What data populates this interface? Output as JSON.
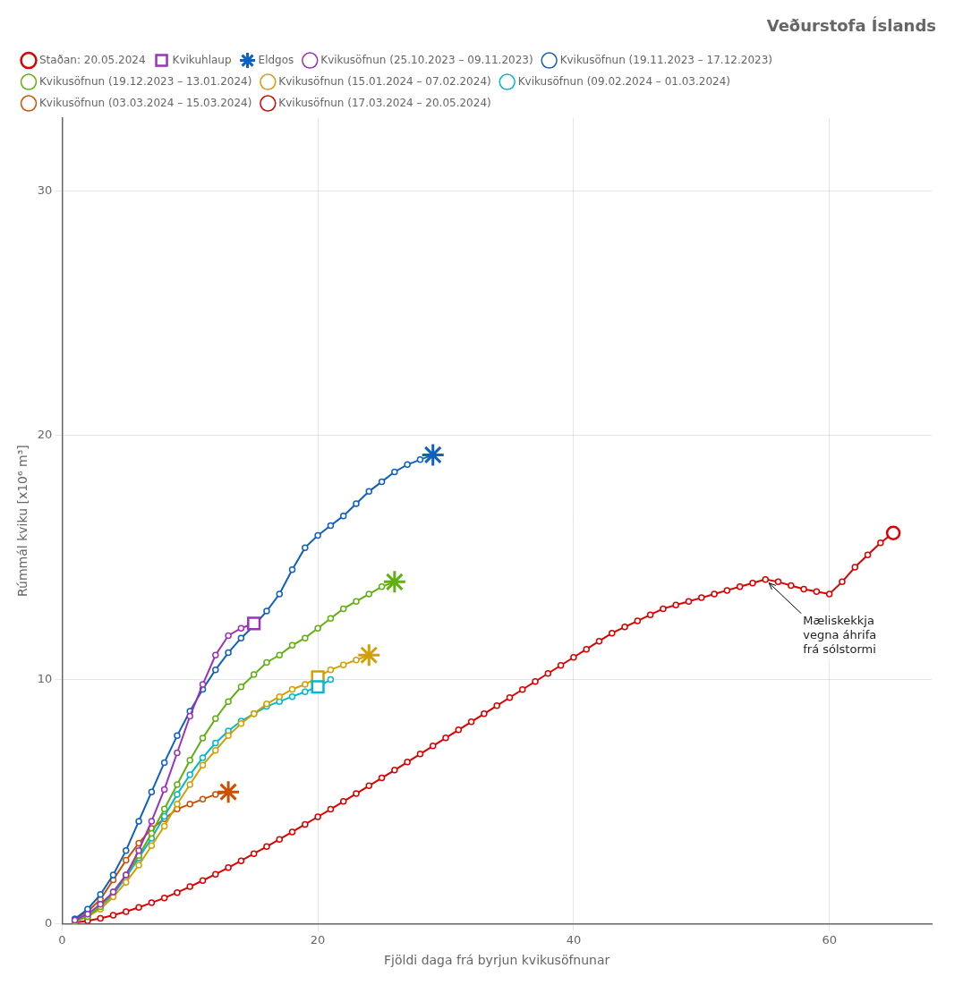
{
  "chart_data": {
    "type": "line",
    "title": "Veðurstofa Íslands",
    "xlabel": "Fjöldi daga frá byrjun kvikusöfnunar",
    "ylabel": "Rúmmál kviku [x10⁶ m³]",
    "xlim": [
      0,
      68
    ],
    "ylim": [
      0,
      33
    ],
    "xticks": [
      0,
      20,
      40,
      60
    ],
    "yticks": [
      0,
      10,
      20,
      30
    ],
    "grid": true,
    "legend": "top",
    "series": [
      {
        "name": "Kvikusöfnun (25.10.2023 – 09.11.2023)",
        "type": "line",
        "marker": "circle",
        "color": "#9933bb",
        "x": [
          1,
          2,
          3,
          4,
          5,
          6,
          7,
          8,
          9,
          10,
          11,
          12,
          13,
          14,
          15
        ],
        "values": [
          0.15,
          0.4,
          0.8,
          1.3,
          2.0,
          3.0,
          4.2,
          5.5,
          7.0,
          8.5,
          9.8,
          11.0,
          11.8,
          12.1,
          12.3
        ]
      },
      {
        "name": "Kvikusöfnun (19.11.2023 – 17.12.2023)",
        "type": "line",
        "marker": "circle",
        "color": "#1060c0",
        "x": [
          1,
          2,
          3,
          4,
          5,
          6,
          7,
          8,
          9,
          10,
          11,
          12,
          13,
          14,
          15,
          16,
          17,
          18,
          19,
          20,
          21,
          22,
          23,
          24,
          25,
          26,
          27,
          28,
          29
        ],
        "values": [
          0.2,
          0.6,
          1.2,
          2.0,
          3.0,
          4.2,
          5.4,
          6.6,
          7.7,
          8.7,
          9.6,
          10.4,
          11.1,
          11.7,
          12.2,
          12.8,
          13.5,
          14.5,
          15.4,
          15.9,
          16.3,
          16.7,
          17.2,
          17.7,
          18.1,
          18.5,
          18.8,
          19.0,
          19.2
        ]
      },
      {
        "name": "Kvikusöfnun (19.12.2023 – 13.01.2024)",
        "type": "line",
        "marker": "circle",
        "color": "#60b010",
        "x": [
          1,
          2,
          3,
          4,
          5,
          6,
          7,
          8,
          9,
          10,
          11,
          12,
          13,
          14,
          15,
          16,
          17,
          18,
          19,
          20,
          21,
          22,
          23,
          24,
          25,
          26
        ],
        "values": [
          0.1,
          0.3,
          0.7,
          1.3,
          2.0,
          2.8,
          3.7,
          4.7,
          5.7,
          6.7,
          7.6,
          8.4,
          9.1,
          9.7,
          10.2,
          10.7,
          11.0,
          11.4,
          11.7,
          12.1,
          12.5,
          12.9,
          13.2,
          13.5,
          13.8,
          14.0
        ]
      },
      {
        "name": "Kvikusöfnun (15.01.2024 – 07.02.2024)",
        "type": "line",
        "marker": "circle",
        "color": "#d4a000",
        "x": [
          1,
          2,
          3,
          4,
          5,
          6,
          7,
          8,
          9,
          10,
          11,
          12,
          13,
          14,
          15,
          16,
          17,
          18,
          19,
          20,
          21,
          22,
          23,
          24
        ],
        "values": [
          0.1,
          0.3,
          0.6,
          1.1,
          1.7,
          2.4,
          3.2,
          4.0,
          4.9,
          5.7,
          6.5,
          7.1,
          7.7,
          8.2,
          8.6,
          9.0,
          9.3,
          9.6,
          9.8,
          10.1,
          10.4,
          10.6,
          10.8,
          11.0
        ]
      },
      {
        "name": "Kvikusöfnun (09.02.2024 – 01.03.2024)",
        "type": "line",
        "marker": "circle",
        "color": "#00b8d0",
        "x": [
          1,
          2,
          3,
          4,
          5,
          6,
          7,
          8,
          9,
          10,
          11,
          12,
          13,
          14,
          15,
          16,
          17,
          18,
          19,
          20,
          21
        ],
        "values": [
          0.1,
          0.3,
          0.7,
          1.2,
          1.9,
          2.7,
          3.5,
          4.4,
          5.3,
          6.1,
          6.8,
          7.4,
          7.9,
          8.3,
          8.6,
          8.9,
          9.1,
          9.3,
          9.5,
          9.7,
          10.0
        ]
      },
      {
        "name": "Kvikusöfnun (03.03.2024 – 15.03.2024)",
        "type": "line",
        "marker": "circle",
        "color": "#cc5000",
        "x": [
          1,
          2,
          3,
          4,
          5,
          6,
          7,
          8,
          9,
          10,
          11,
          12,
          13
        ],
        "values": [
          0.2,
          0.5,
          1.0,
          1.8,
          2.6,
          3.3,
          3.9,
          4.3,
          4.7,
          4.9,
          5.1,
          5.3,
          5.4
        ]
      },
      {
        "name": "Kvikusöfnun (17.03.2024 – 20.05.2024)",
        "type": "line",
        "marker": "circle",
        "color": "#dd0000",
        "x": [
          1,
          2,
          3,
          4,
          5,
          6,
          7,
          8,
          9,
          10,
          11,
          12,
          13,
          14,
          15,
          16,
          17,
          18,
          19,
          20,
          21,
          22,
          23,
          24,
          25,
          26,
          27,
          28,
          29,
          30,
          31,
          32,
          33,
          34,
          35,
          36,
          37,
          38,
          39,
          40,
          41,
          42,
          43,
          44,
          45,
          46,
          47,
          48,
          49,
          50,
          51,
          52,
          53,
          54,
          55,
          56,
          57,
          58,
          59,
          60,
          61,
          62,
          63,
          64,
          65
        ],
        "values": [
          0.05,
          0.12,
          0.22,
          0.35,
          0.5,
          0.67,
          0.86,
          1.06,
          1.28,
          1.52,
          1.77,
          2.03,
          2.3,
          2.58,
          2.87,
          3.16,
          3.46,
          3.76,
          4.07,
          4.38,
          4.69,
          5.01,
          5.33,
          5.65,
          5.97,
          6.29,
          6.62,
          6.95,
          7.28,
          7.61,
          7.94,
          8.27,
          8.6,
          8.93,
          9.26,
          9.59,
          9.92,
          10.25,
          10.58,
          10.91,
          11.24,
          11.57,
          11.9,
          12.15,
          12.4,
          12.65,
          12.9,
          13.05,
          13.2,
          13.35,
          13.5,
          13.65,
          13.8,
          13.95,
          14.1,
          14.0,
          13.85,
          13.7,
          13.6,
          13.5,
          14.0,
          14.6,
          15.1,
          15.6,
          16.0
        ]
      },
      {
        "name": "Staðan: 20.05.2024",
        "type": "scatter",
        "marker": "circle",
        "color": "#dd0000",
        "x": [
          65
        ],
        "values": [
          16.0
        ]
      },
      {
        "name": "Kvikuhlaup",
        "type": "scatter",
        "marker": "square",
        "x": [
          15,
          20,
          20
        ],
        "values": [
          12.3,
          10.1,
          9.7
        ],
        "colors": [
          "#9933bb",
          "#d4a000",
          "#00b8d0"
        ]
      },
      {
        "name": "Eldgos",
        "type": "scatter",
        "marker": "star",
        "x": [
          29,
          26,
          24,
          13
        ],
        "values": [
          19.2,
          14.0,
          11.0,
          5.4
        ],
        "colors": [
          "#1060c0",
          "#60b010",
          "#d4a000",
          "#cc5000"
        ]
      }
    ],
    "annotations": [
      {
        "text": "Mæliskekkja\nvegna áhrifa\nfrá sólstormi",
        "x": 55,
        "y": 14.1
      }
    ]
  }
}
